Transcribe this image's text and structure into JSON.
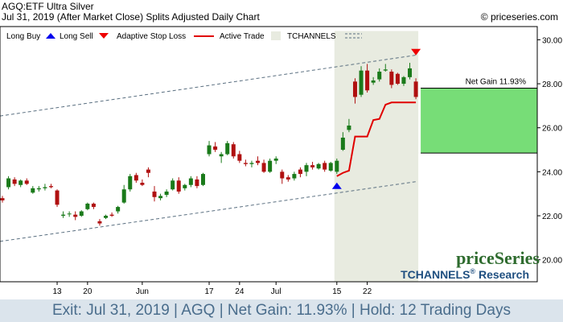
{
  "header": {
    "title_line": "AGQ:ETF Ultra Silver",
    "date_line": "Jul 31, 2019 (After Market Close)  Splits Adjusted Daily Chart",
    "copyright": "© priceseries.com"
  },
  "legend": {
    "long_buy": "Long Buy",
    "long_sell": "Long Sell",
    "adaptive_stop": "Adaptive Stop Loss",
    "active_trade": "Active Trade",
    "tchannels": "TCHANNELS"
  },
  "annotation": {
    "net_gain": "Net Gain 11.93%"
  },
  "branding": {
    "logo": "priceSeries",
    "research": "TCHANNELS",
    "research_reg": "®",
    "research_suffix": " Research"
  },
  "footer": {
    "text": "Exit: Jul 31, 2019 | AGQ | Net Gain: 11.93% | Hold: 12 Trading Days"
  },
  "colors": {
    "up_candle": "#1a7a1a",
    "down_candle": "#b01010",
    "stop_line": "#e00000",
    "active_trade_fill": "#e8ebe0",
    "gain_fill": "#77dd77",
    "channel": "#5a6f80",
    "buy_arrow": "#0000ee",
    "sell_arrow": "#ee0000",
    "footer_text": "#4a6d8c",
    "logo_green": "#2e6b2e",
    "research_blue": "#1f4f80"
  },
  "chart_data": {
    "type": "candlestick",
    "ylim": [
      19.0,
      30.6
    ],
    "yticks": [
      "30.00",
      "28.00",
      "26.00",
      "24.00",
      "22.00",
      "20.00"
    ],
    "ytick_values": [
      30,
      28,
      26,
      24,
      22,
      20
    ],
    "xtick_labels": [
      "13",
      "20",
      "Jun",
      "17",
      "24",
      "Jul",
      "15",
      "22"
    ],
    "xtick_index": [
      9,
      14,
      23,
      34,
      39,
      45,
      55,
      60
    ],
    "candles": [
      {
        "o": 22.8,
        "h": 22.9,
        "l": 22.6,
        "c": 22.7
      },
      {
        "o": 23.3,
        "h": 23.8,
        "l": 23.2,
        "c": 23.7
      },
      {
        "o": 23.65,
        "h": 23.75,
        "l": 23.35,
        "c": 23.45
      },
      {
        "o": 23.4,
        "h": 23.65,
        "l": 23.3,
        "c": 23.6
      },
      {
        "o": 23.6,
        "h": 23.7,
        "l": 23.4,
        "c": 23.45
      },
      {
        "o": 23.05,
        "h": 23.35,
        "l": 23.0,
        "c": 23.25
      },
      {
        "o": 23.2,
        "h": 23.35,
        "l": 23.1,
        "c": 23.25
      },
      {
        "o": 23.25,
        "h": 23.45,
        "l": 23.15,
        "c": 23.3
      },
      {
        "o": 23.35,
        "h": 23.45,
        "l": 23.25,
        "c": 23.3
      },
      {
        "o": 23.15,
        "h": 23.2,
        "l": 22.4,
        "c": 22.5
      },
      {
        "o": 22.0,
        "h": 22.2,
        "l": 21.9,
        "c": 22.05
      },
      {
        "o": 22.1,
        "h": 22.2,
        "l": 21.95,
        "c": 22.1
      },
      {
        "o": 22.05,
        "h": 22.2,
        "l": 21.8,
        "c": 21.95
      },
      {
        "o": 22.0,
        "h": 22.25,
        "l": 21.95,
        "c": 22.2
      },
      {
        "o": 22.3,
        "h": 22.6,
        "l": 22.25,
        "c": 22.55
      },
      {
        "o": 22.55,
        "h": 22.6,
        "l": 22.3,
        "c": 22.4
      },
      {
        "o": 21.75,
        "h": 21.85,
        "l": 21.55,
        "c": 21.65
      },
      {
        "o": 21.9,
        "h": 22.05,
        "l": 21.85,
        "c": 22.0
      },
      {
        "o": 22.05,
        "h": 22.15,
        "l": 21.95,
        "c": 22.0
      },
      {
        "o": 22.2,
        "h": 22.45,
        "l": 22.1,
        "c": 22.4
      },
      {
        "o": 22.6,
        "h": 23.4,
        "l": 22.55,
        "c": 23.2
      },
      {
        "o": 23.2,
        "h": 23.9,
        "l": 23.1,
        "c": 23.8
      },
      {
        "o": 23.85,
        "h": 23.95,
        "l": 23.5,
        "c": 23.6
      },
      {
        "o": 23.5,
        "h": 23.65,
        "l": 23.35,
        "c": 23.4
      },
      {
        "o": 24.1,
        "h": 24.2,
        "l": 23.75,
        "c": 23.95
      },
      {
        "o": 23.1,
        "h": 23.35,
        "l": 22.65,
        "c": 22.85
      },
      {
        "o": 22.8,
        "h": 23.0,
        "l": 22.7,
        "c": 22.9
      },
      {
        "o": 22.95,
        "h": 23.2,
        "l": 22.85,
        "c": 23.1
      },
      {
        "o": 23.2,
        "h": 23.7,
        "l": 23.15,
        "c": 23.6
      },
      {
        "o": 23.6,
        "h": 23.75,
        "l": 23.0,
        "c": 23.1
      },
      {
        "o": 23.25,
        "h": 23.45,
        "l": 23.15,
        "c": 23.4
      },
      {
        "o": 23.4,
        "h": 23.8,
        "l": 23.3,
        "c": 23.7
      },
      {
        "o": 23.65,
        "h": 23.8,
        "l": 23.25,
        "c": 23.35
      },
      {
        "o": 23.4,
        "h": 23.95,
        "l": 23.35,
        "c": 23.9
      },
      {
        "o": 24.8,
        "h": 25.4,
        "l": 24.7,
        "c": 25.2
      },
      {
        "o": 25.15,
        "h": 25.35,
        "l": 24.9,
        "c": 25.0
      },
      {
        "o": 24.7,
        "h": 24.9,
        "l": 24.4,
        "c": 24.8
      },
      {
        "o": 24.8,
        "h": 25.4,
        "l": 24.75,
        "c": 25.3
      },
      {
        "o": 25.25,
        "h": 25.35,
        "l": 24.6,
        "c": 24.7
      },
      {
        "o": 24.8,
        "h": 24.95,
        "l": 24.4,
        "c": 24.5
      },
      {
        "o": 24.4,
        "h": 24.55,
        "l": 24.25,
        "c": 24.35
      },
      {
        "o": 24.35,
        "h": 24.5,
        "l": 24.2,
        "c": 24.4
      },
      {
        "o": 24.5,
        "h": 24.7,
        "l": 24.3,
        "c": 24.4
      },
      {
        "o": 24.4,
        "h": 24.55,
        "l": 23.95,
        "c": 24.0
      },
      {
        "o": 24.0,
        "h": 24.6,
        "l": 23.95,
        "c": 24.5
      },
      {
        "o": 24.5,
        "h": 24.7,
        "l": 24.35,
        "c": 24.6
      },
      {
        "o": 24.0,
        "h": 24.1,
        "l": 23.45,
        "c": 23.7
      },
      {
        "o": 23.75,
        "h": 23.85,
        "l": 23.55,
        "c": 23.65
      },
      {
        "o": 23.7,
        "h": 24.0,
        "l": 23.6,
        "c": 23.9
      },
      {
        "o": 24.1,
        "h": 24.2,
        "l": 23.75,
        "c": 23.9
      },
      {
        "o": 24.0,
        "h": 24.4,
        "l": 23.8,
        "c": 24.3
      },
      {
        "o": 24.3,
        "h": 24.45,
        "l": 24.1,
        "c": 24.2
      },
      {
        "o": 24.15,
        "h": 24.4,
        "l": 24.1,
        "c": 24.35
      },
      {
        "o": 24.4,
        "h": 24.5,
        "l": 24.0,
        "c": 24.1
      },
      {
        "o": 24.05,
        "h": 24.45,
        "l": 24.0,
        "c": 24.4
      },
      {
        "o": 24.0,
        "h": 24.6,
        "l": 23.9,
        "c": 24.5
      },
      {
        "o": 25.0,
        "h": 25.8,
        "l": 24.95,
        "c": 25.55
      },
      {
        "o": 25.9,
        "h": 26.4,
        "l": 25.8,
        "c": 26.1
      },
      {
        "o": 28.1,
        "h": 28.25,
        "l": 27.1,
        "c": 27.4
      },
      {
        "o": 27.5,
        "h": 28.8,
        "l": 27.4,
        "c": 28.6
      },
      {
        "o": 28.6,
        "h": 28.9,
        "l": 27.6,
        "c": 27.7
      },
      {
        "o": 28.05,
        "h": 28.3,
        "l": 27.95,
        "c": 28.15
      },
      {
        "o": 28.2,
        "h": 28.7,
        "l": 28.1,
        "c": 28.55
      },
      {
        "o": 28.6,
        "h": 28.9,
        "l": 28.55,
        "c": 28.65
      },
      {
        "o": 28.55,
        "h": 28.65,
        "l": 27.8,
        "c": 27.95
      },
      {
        "o": 28.45,
        "h": 28.5,
        "l": 27.95,
        "c": 28.0
      },
      {
        "o": 28.0,
        "h": 28.35,
        "l": 27.9,
        "c": 28.3
      },
      {
        "o": 28.3,
        "h": 28.95,
        "l": 28.2,
        "c": 28.7
      },
      {
        "o": 28.1,
        "h": 28.25,
        "l": 27.3,
        "c": 27.4
      }
    ],
    "stop_loss": [
      [
        55,
        23.8
      ],
      [
        56,
        23.95
      ],
      [
        57,
        24.05
      ],
      [
        58,
        25.6
      ],
      [
        59,
        25.6
      ],
      [
        60,
        25.6
      ],
      [
        61,
        26.35
      ],
      [
        62,
        26.4
      ],
      [
        63,
        27.05
      ],
      [
        64,
        27.15
      ],
      [
        65,
        27.15
      ],
      [
        66,
        27.15
      ],
      [
        67,
        27.15
      ],
      [
        68,
        27.15
      ]
    ],
    "channel_upper": [
      [
        0,
        26.55
      ],
      [
        68,
        29.3
      ]
    ],
    "channel_lower": [
      [
        0,
        20.85
      ],
      [
        68,
        23.55
      ]
    ],
    "active_trade": {
      "start_index": 55,
      "end_index": 68,
      "ymax": 30.4
    },
    "buy_signal": {
      "index": 55,
      "price": 23.4
    },
    "sell_signal": {
      "index": 68,
      "price": 29.4
    },
    "gain_box": {
      "entry": 24.85,
      "exit": 27.8,
      "net_gain_pct": 11.93
    }
  }
}
